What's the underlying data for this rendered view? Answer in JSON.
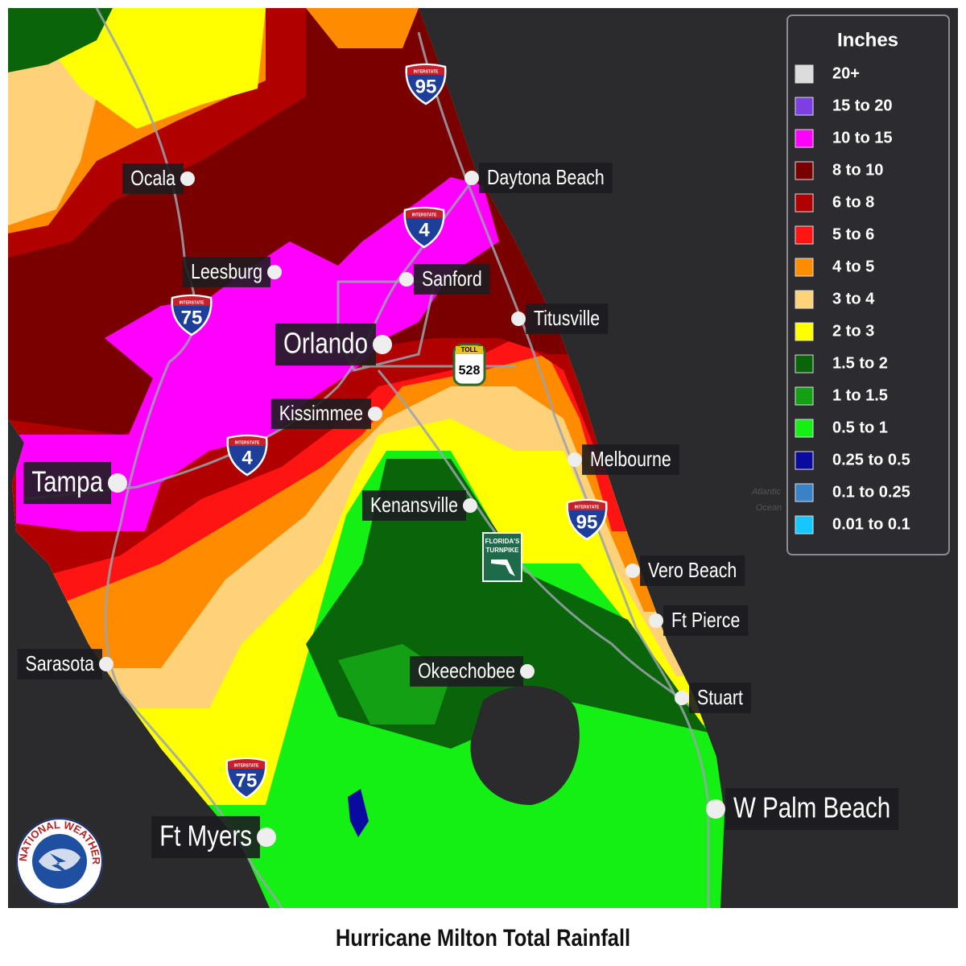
{
  "title": "Hurricane Milton Total Rainfall",
  "legend": {
    "title": "Inches",
    "items": [
      {
        "label": "20+",
        "color": "#dcdcdc"
      },
      {
        "label": "15 to 20",
        "color": "#7b3fe4"
      },
      {
        "label": "10 to 15",
        "color": "#ff00ff"
      },
      {
        "label": "8 to 10",
        "color": "#7a0000"
      },
      {
        "label": "6 to 8",
        "color": "#b00000"
      },
      {
        "label": "5 to 6",
        "color": "#ff1414"
      },
      {
        "label": "4 to 5",
        "color": "#ff8c00"
      },
      {
        "label": "3 to 4",
        "color": "#ffd27a"
      },
      {
        "label": "2 to 3",
        "color": "#ffff00"
      },
      {
        "label": "1.5 to 2",
        "color": "#0a640a"
      },
      {
        "label": "1 to 1.5",
        "color": "#14a014"
      },
      {
        "label": "0.5 to 1",
        "color": "#14f014"
      },
      {
        "label": "0.25 to 0.5",
        "color": "#0a0aa0"
      },
      {
        "label": "0.1 to 0.25",
        "color": "#3a82c8"
      },
      {
        "label": "0.01 to 0.1",
        "color": "#14c8ff"
      }
    ]
  },
  "cities": [
    "Ocala",
    "Daytona Beach",
    "Leesburg",
    "Sanford",
    "Titusville",
    "Orlando",
    "Kissimmee",
    "Melbourne",
    "Tampa",
    "Kenansville",
    "Vero Beach",
    "Ft Pierce",
    "Sarasota",
    "Okeechobee",
    "Stuart",
    "W Palm Beach",
    "Ft Myers"
  ],
  "interstate_shields": [
    {
      "label": "INTERSTATE",
      "number": "95"
    },
    {
      "label": "INTERSTATE",
      "number": "4"
    },
    {
      "label": "INTERSTATE",
      "number": "75"
    },
    {
      "label": "INTERSTATE",
      "number": "4"
    },
    {
      "label": "INTERSTATE",
      "number": "95"
    },
    {
      "label": "INTERSTATE",
      "number": "75"
    }
  ],
  "toll_shield": {
    "top": "TOLL",
    "number": "528"
  },
  "turnpike_sign": {
    "lines": [
      "FLORIDA'S",
      "TURNPIKE"
    ]
  },
  "ocean_label": {
    "lines": [
      "Atlantic",
      "Ocean"
    ]
  },
  "logo": {
    "text": "NATIONAL WEATHER SERVICE"
  }
}
